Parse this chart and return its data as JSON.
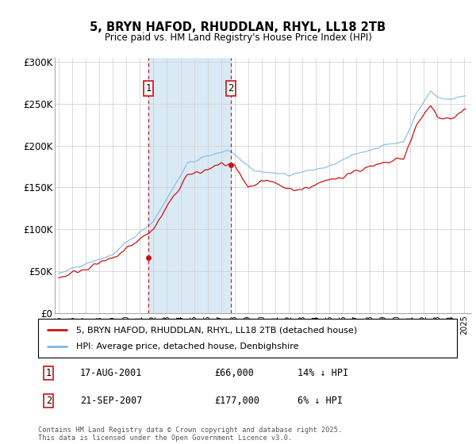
{
  "title": "5, BRYN HAFOD, RHUDDLAN, RHYL, LL18 2TB",
  "subtitle": "Price paid vs. HM Land Registry's House Price Index (HPI)",
  "ylabel_ticks": [
    "£0",
    "£50K",
    "£100K",
    "£150K",
    "£200K",
    "£250K",
    "£300K"
  ],
  "ytick_values": [
    0,
    50000,
    100000,
    150000,
    200000,
    250000,
    300000
  ],
  "ylim": [
    0,
    305000
  ],
  "xlim_start": 1994.7,
  "xlim_end": 2025.5,
  "transaction1_date": 2001.63,
  "transaction1_price": 66000,
  "transaction2_date": 2007.72,
  "transaction2_price": 177000,
  "hpi_line_color": "#7ab8e0",
  "price_line_color": "#cc1111",
  "shade_color": "#daeaf5",
  "grid_color": "#cccccc",
  "legend_label_red": "5, BRYN HAFOD, RHUDDLAN, RHYL, LL18 2TB (detached house)",
  "legend_label_blue": "HPI: Average price, detached house, Denbighshire",
  "footer": "Contains HM Land Registry data © Crown copyright and database right 2025.\nThis data is licensed under the Open Government Licence v3.0."
}
